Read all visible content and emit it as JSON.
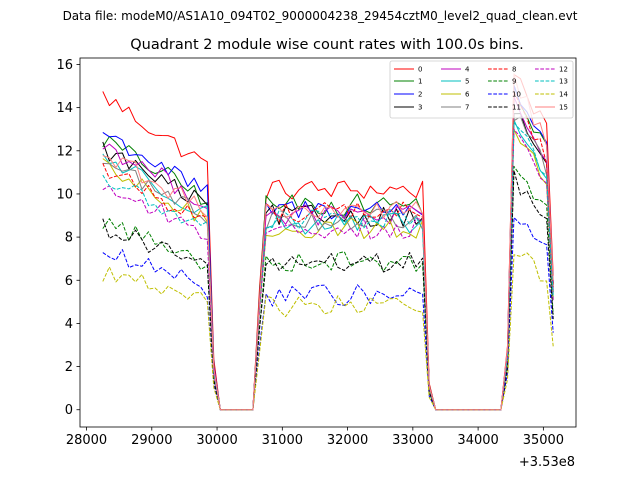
{
  "chart_data": {
    "type": "line",
    "suptitle": "Data file: modeM0/AS1A10_094T02_9000004238_29454cztM0_level2_quad_clean.evt",
    "title": "Quadrant 2 module wise count rates with 100.0s bins.",
    "xlabel": "",
    "ylabel": "",
    "x_offset_label": "+3.53e8",
    "xlim": [
      27900,
      35500
    ],
    "ylim": [
      -0.8,
      16.3
    ],
    "x_ticks": [
      28000,
      29000,
      30000,
      31000,
      32000,
      33000,
      34000,
      35000
    ],
    "x_tick_labels": [
      "28000",
      "29000",
      "30000",
      "31000",
      "32000",
      "33000",
      "34000",
      "35000"
    ],
    "y_ticks": [
      0,
      2,
      4,
      6,
      8,
      10,
      12,
      14,
      16
    ],
    "y_tick_labels": [
      "0",
      "2",
      "4",
      "6",
      "8",
      "10",
      "12",
      "14",
      "16"
    ],
    "legend_position": "upper-right",
    "segments": [
      {
        "start": 28250,
        "end": 29850
      },
      {
        "start": 30750,
        "end": 33150
      },
      {
        "start": 34550,
        "end": 35050
      }
    ],
    "bin_width": 100,
    "series": [
      {
        "name": "0",
        "color": "#ff0000",
        "dash": "solid",
        "levels": [
          13.0,
          10.2,
          14.8
        ]
      },
      {
        "name": "1",
        "color": "#008000",
        "dash": "solid",
        "levels": [
          11.2,
          9.5,
          13.8
        ]
      },
      {
        "name": "2",
        "color": "#0000ff",
        "dash": "solid",
        "levels": [
          11.5,
          9.3,
          14.0
        ]
      },
      {
        "name": "3",
        "color": "#000000",
        "dash": "solid",
        "levels": [
          10.8,
          9.0,
          13.0
        ]
      },
      {
        "name": "4",
        "color": "#bf00bf",
        "dash": "solid",
        "levels": [
          11.0,
          9.0,
          13.2
        ]
      },
      {
        "name": "5",
        "color": "#00bfbf",
        "dash": "solid",
        "levels": [
          10.5,
          8.6,
          12.4
        ]
      },
      {
        "name": "6",
        "color": "#bfbf00",
        "dash": "solid",
        "levels": [
          10.0,
          8.4,
          12.2
        ]
      },
      {
        "name": "7",
        "color": "#808080",
        "dash": "solid",
        "levels": [
          10.3,
          8.8,
          12.8
        ]
      },
      {
        "name": "8",
        "color": "#ff0000",
        "dash": "dashed",
        "levels": [
          10.0,
          9.2,
          13.5
        ]
      },
      {
        "name": "9",
        "color": "#008000",
        "dash": "dashed",
        "levels": [
          7.8,
          6.9,
          10.5
        ]
      },
      {
        "name": "10",
        "color": "#0000ff",
        "dash": "dashed",
        "levels": [
          6.5,
          5.3,
          8.5
        ]
      },
      {
        "name": "11",
        "color": "#000000",
        "dash": "dashed",
        "levels": [
          7.6,
          6.8,
          10.0
        ]
      },
      {
        "name": "12",
        "color": "#bf00bf",
        "dash": "dashed",
        "levels": [
          9.3,
          8.4,
          12.0
        ]
      },
      {
        "name": "13",
        "color": "#00bfbf",
        "dash": "dashed",
        "levels": [
          9.6,
          8.8,
          12.5
        ]
      },
      {
        "name": "14",
        "color": "#bfbf00",
        "dash": "dashed",
        "levels": [
          5.7,
          4.8,
          7.0
        ]
      },
      {
        "name": "15",
        "color": "#ff8080",
        "dash": "solid",
        "levels": [
          10.6,
          9.2,
          14.3
        ]
      }
    ]
  }
}
